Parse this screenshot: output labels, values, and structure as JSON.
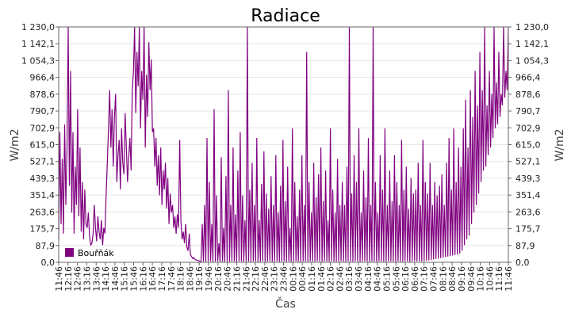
{
  "chart_data": {
    "type": "line",
    "title": "Radiace",
    "xlabel": "Čas",
    "ylabel": "W/m2",
    "ylabel_right": "W/m2",
    "ylim": [
      0,
      1230
    ],
    "grid": true,
    "legend_position": "bottom-left",
    "y_ticks": [
      "0,0",
      "87,9",
      "175,7",
      "263,6",
      "351,4",
      "439,3",
      "527,1",
      "615,0",
      "702,9",
      "790,7",
      "878,6",
      "966,4",
      "1 054,3",
      "1 142,1",
      "1 230,0"
    ],
    "x_ticks": [
      "11:46",
      "12:16",
      "12:46",
      "13:16",
      "13:46",
      "14:16",
      "14:46",
      "15:16",
      "15:46",
      "16:16",
      "16:46",
      "17:16",
      "17:46",
      "18:16",
      "18:46",
      "19:16",
      "19:46",
      "20:16",
      "20:46",
      "21:16",
      "21:46",
      "22:16",
      "22:46",
      "23:16",
      "23:46",
      "00:16",
      "00:46",
      "01:16",
      "01:46",
      "02:16",
      "02:46",
      "03:16",
      "03:46",
      "04:16",
      "04:46",
      "05:16",
      "05:46",
      "06:16",
      "06:46",
      "07:16",
      "07:46",
      "08:16",
      "08:46",
      "09:16",
      "09:46",
      "10:16",
      "10:46",
      "11:16",
      "11:46"
    ],
    "series": [
      {
        "name": "Bouřňák",
        "color": "#800080",
        "values": [
          [
            120,
            680,
            200,
            540,
            150,
            720,
            300,
            600,
            1230,
            400,
            1000,
            260,
            680,
            150,
            500,
            300,
            800,
            240,
            600,
            160
          ],
          [
            420,
            120,
            380,
            200,
            180,
            260,
            140,
            90,
            100,
            150,
            300,
            180,
            110,
            240,
            160,
            120,
            220,
            90,
            180,
            150
          ],
          [
            350,
            520,
            700,
            900,
            600,
            800,
            500,
            760,
            880,
            420,
            560,
            640,
            380,
            700,
            520,
            460,
            780,
            600,
            420,
            550
          ],
          [
            650,
            480,
            900,
            1000,
            1230,
            780,
            1100,
            920,
            1230,
            700,
            1000,
            850,
            1230,
            600,
            980,
            760,
            1150,
            900,
            1060,
            680
          ],
          [
            700,
            500,
            650,
            400,
            560,
            350,
            600,
            300,
            480,
            380,
            520,
            280,
            440,
            200,
            360,
            260,
            300,
            180,
            240,
            150
          ],
          [
            250,
            180,
            640,
            220,
            120,
            160,
            100,
            200,
            80,
            60,
            150,
            40,
            30,
            20,
            25,
            15,
            12,
            10,
            8,
            6
          ],
          [
            5,
            200,
            4,
            300,
            3,
            650,
            4,
            420,
            5,
            200,
            3,
            800,
            4,
            350,
            5,
            100,
            3,
            550,
            4,
            180
          ],
          [
            3,
            450,
            4,
            900,
            3,
            300,
            5,
            600,
            4,
            250,
            3,
            480,
            5,
            680,
            4,
            350,
            3,
            220,
            4,
            1230
          ],
          [
            4,
            380,
            3,
            520,
            5,
            300,
            4,
            650,
            3,
            220,
            4,
            410,
            5,
            580,
            3,
            360,
            4,
            280,
            5,
            450
          ],
          [
            3,
            300,
            4,
            560,
            5,
            260,
            3,
            400,
            4,
            640,
            5,
            320,
            3,
            500,
            4,
            180,
            3,
            700,
            4,
            420
          ],
          [
            5,
            240,
            4,
            380,
            3,
            560,
            5,
            300,
            4,
            1100,
            3,
            420,
            5,
            260,
            4,
            520,
            3,
            340,
            5,
            460
          ],
          [
            4,
            600,
            3,
            320,
            5,
            480,
            4,
            220,
            3,
            700,
            5,
            380,
            4,
            260,
            3,
            540,
            4,
            300,
            5,
            420
          ],
          [
            4,
            300,
            3,
            500,
            5,
            1230,
            4,
            360,
            3,
            560,
            5,
            420,
            4,
            700,
            3,
            260,
            4,
            480,
            5,
            340
          ],
          [
            4,
            650,
            3,
            300,
            5,
            1230,
            4,
            420,
            3,
            260,
            5,
            560,
            4,
            380,
            3,
            700,
            4,
            300,
            5,
            480
          ],
          [
            5,
            320,
            4,
            560,
            3,
            420,
            5,
            300,
            4,
            640,
            3,
            380,
            5,
            500,
            4,
            280,
            3,
            440,
            5,
            360
          ],
          [
            6,
            380,
            5,
            520,
            6,
            300,
            5,
            640,
            6,
            420,
            8,
            360,
            10,
            520,
            12,
            300,
            15,
            420,
            18,
            350
          ],
          [
            20,
            400,
            22,
            460,
            25,
            300,
            28,
            520,
            30,
            650,
            32,
            380,
            35,
            700,
            38,
            420,
            40,
            600,
            45,
            500
          ],
          [
            60,
            700,
            90,
            850,
            120,
            600,
            140,
            900,
            200,
            760,
            260,
            1000,
            300,
            820,
            360,
            1100,
            420,
            900,
            480,
            1230
          ],
          [
            500,
            820,
            560,
            1000,
            600,
            880,
            650,
            1230,
            700,
            940,
            720,
            1100,
            760,
            880,
            820,
            1230,
            860,
            1000,
            900,
            1230
          ]
        ]
      }
    ]
  }
}
